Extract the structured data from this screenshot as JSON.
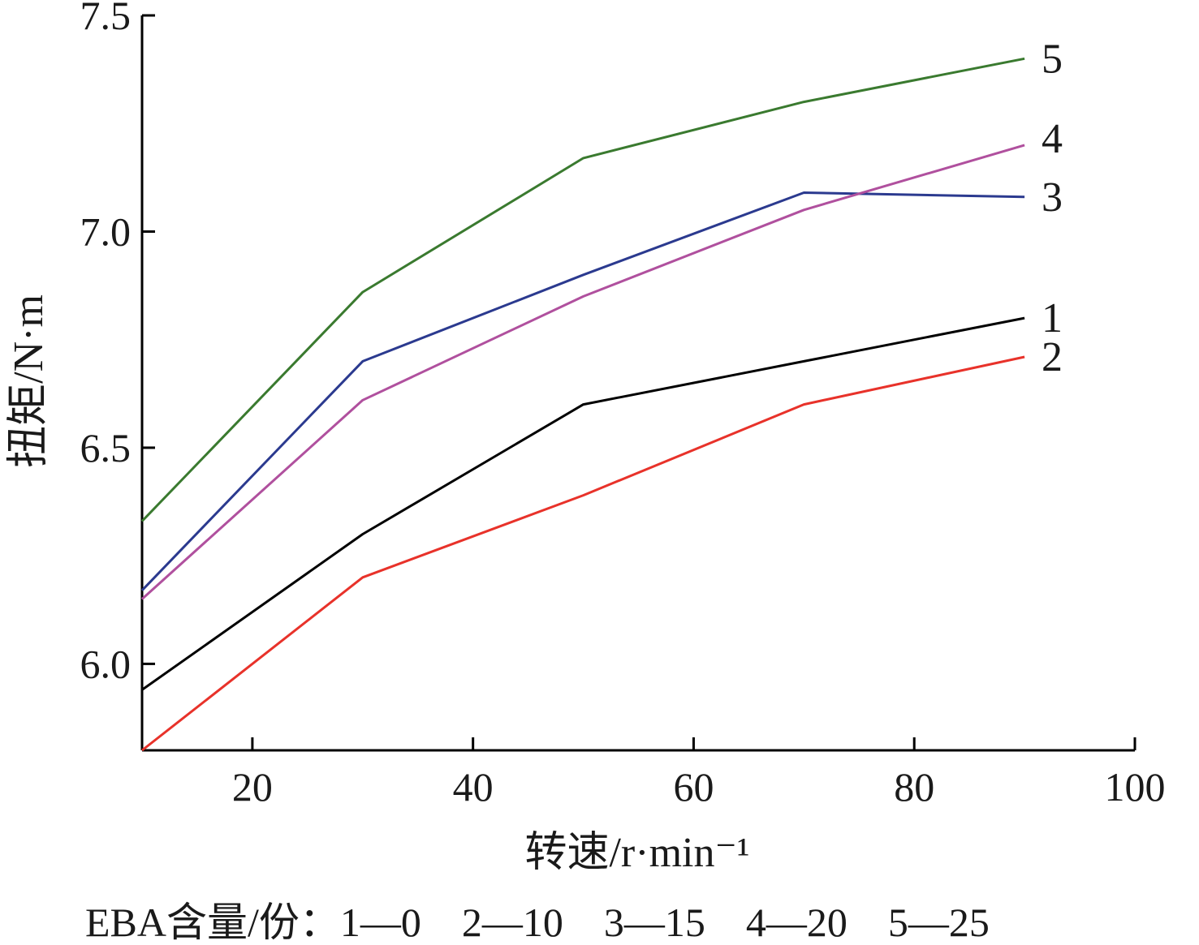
{
  "chart_data": {
    "type": "line",
    "xlabel": "转速/r·min⁻¹",
    "ylabel": "扭矩/N·m",
    "xlim": [
      10,
      100
    ],
    "ylim": [
      5.8,
      7.5
    ],
    "xticks": [
      20,
      40,
      60,
      80,
      100
    ],
    "yticks": [
      6.0,
      6.5,
      7.0,
      7.5
    ],
    "xtick_labels": [
      "20",
      "40",
      "60",
      "80",
      "100"
    ],
    "ytick_labels": [
      "6.0",
      "6.5",
      "7.0",
      "7.5"
    ],
    "x": [
      10,
      30,
      50,
      70,
      90
    ],
    "series": [
      {
        "name": "1",
        "color": "#000000",
        "values": [
          5.94,
          6.3,
          6.6,
          6.7,
          6.8
        ]
      },
      {
        "name": "2",
        "color": "#e8322a",
        "values": [
          5.8,
          6.2,
          6.39,
          6.6,
          6.71
        ]
      },
      {
        "name": "3",
        "color": "#2b3a8f",
        "values": [
          6.17,
          6.7,
          6.9,
          7.09,
          7.08
        ]
      },
      {
        "name": "4",
        "color": "#b0509e",
        "values": [
          6.15,
          6.61,
          6.85,
          7.05,
          7.2
        ]
      },
      {
        "name": "5",
        "color": "#3a7a2f",
        "values": [
          6.33,
          6.86,
          7.17,
          7.3,
          7.4
        ]
      }
    ],
    "legend_caption": "EBA含量/份：1—0　2—10　3—15　4—20　5—25",
    "grid": false
  }
}
